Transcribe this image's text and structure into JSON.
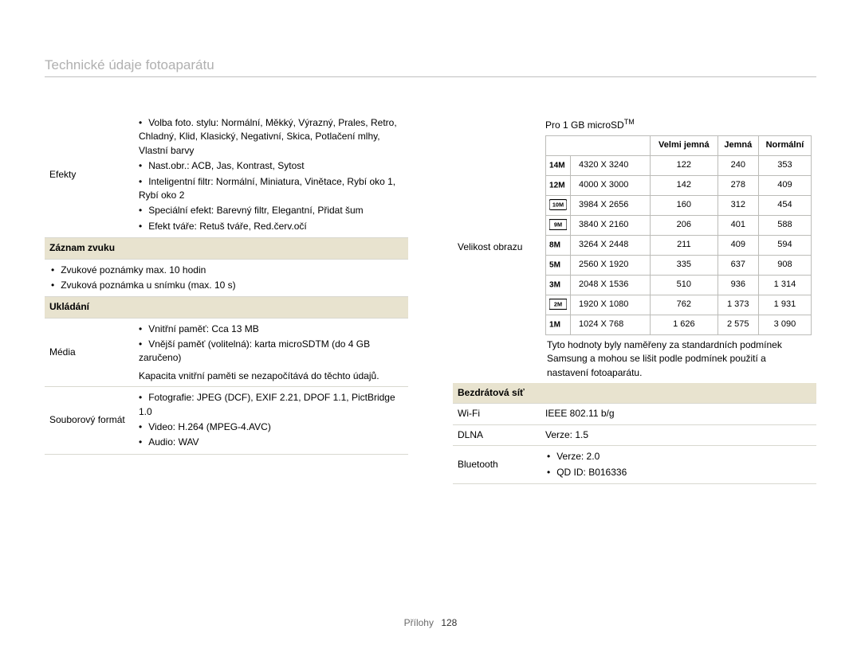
{
  "page_title": "Technické údaje fotoaparátu",
  "left": {
    "effects_label": "Efekty",
    "effects_items": [
      "Volba foto. stylu: Normální, Měkký, Výrazný, Prales, Retro, Chladný, Klid, Klasický, Negativní, Skica, Potlačení mlhy, Vlastní barvy",
      "Nast.obr.: ACB, Jas, Kontrast, Sytost",
      "Inteligentní filtr: Normální, Miniatura, Vinětace, Rybí oko 1, Rybí oko 2",
      "Speciální efekt: Barevný filtr, Elegantní, Přidat šum",
      "Efekt tváře: Retuš tváře, Red.červ.očí"
    ],
    "sound_section": "Záznam zvuku",
    "sound_items": [
      "Zvukové poznámky max. 10 hodin",
      "Zvuková poznámka u snímku (max. 10 s)"
    ],
    "storage_section": "Ukládání",
    "media_label": "Média",
    "media_items": [
      "Vnitřní paměť: Cca 13 MB",
      "Vnější paměť (volitelná): karta microSDTM (do 4 GB zaručeno)"
    ],
    "media_note": "Kapacita vnitřní paměti se nezapočítává do těchto údajů.",
    "format_label": "Souborový formát",
    "format_items": [
      "Fotografie: JPEG (DCF), EXIF 2.21, DPOF 1.1, PictBridge 1.0",
      "Video: H.264 (MPEG-4.AVC)",
      "Audio: WAV"
    ]
  },
  "right": {
    "size_label": "Velikost obrazu",
    "for_card": "Pro 1 GB microSD",
    "tm": "TM",
    "cols": [
      "Velmi jemná",
      "Jemná",
      "Normální"
    ],
    "rows": [
      {
        "icon": "14m",
        "res": "4320 X 3240",
        "v": [
          "122",
          "240",
          "353"
        ]
      },
      {
        "icon": "12m",
        "res": "4000 X 3000",
        "v": [
          "142",
          "278",
          "409"
        ]
      },
      {
        "icon": "10m",
        "res": "3984 X 2656",
        "v": [
          "160",
          "312",
          "454"
        ]
      },
      {
        "icon": "9m",
        "res": "3840 X 2160",
        "v": [
          "206",
          "401",
          "588"
        ]
      },
      {
        "icon": "8m",
        "res": "3264 X 2448",
        "v": [
          "211",
          "409",
          "594"
        ]
      },
      {
        "icon": "5m",
        "res": "2560 X 1920",
        "v": [
          "335",
          "637",
          "908"
        ]
      },
      {
        "icon": "3m",
        "res": "2048 X 1536",
        "v": [
          "510",
          "936",
          "1 314"
        ]
      },
      {
        "icon": "2m",
        "res": "1920 X 1080",
        "v": [
          "762",
          "1 373",
          "1 931"
        ]
      },
      {
        "icon": "1m",
        "res": "1024 X 768",
        "v": [
          "1 626",
          "2 575",
          "3 090"
        ]
      }
    ],
    "note": "Tyto hodnoty byly naměřeny za standardních podmínek Samsung a mohou se lišit podle podmínek použití a nastavení fotoaparátu.",
    "wireless_section": "Bezdrátová síť",
    "wifi_label": "Wi-Fi",
    "wifi_value": "IEEE 802.11 b/g",
    "dlna_label": "DLNA",
    "dlna_value": "Verze: 1.5",
    "bt_label": "Bluetooth",
    "bt_items": [
      "Verze: 2.0",
      "QD ID: B016336"
    ]
  },
  "footer_label": "Přílohy",
  "footer_page": "128",
  "icon_labels": {
    "14m": "14M",
    "12m": "12M",
    "10m": "10M",
    "9m": "9M",
    "8m": "8M",
    "5m": "5M",
    "3m": "3M",
    "2m": "2M",
    "1m": "1M"
  }
}
